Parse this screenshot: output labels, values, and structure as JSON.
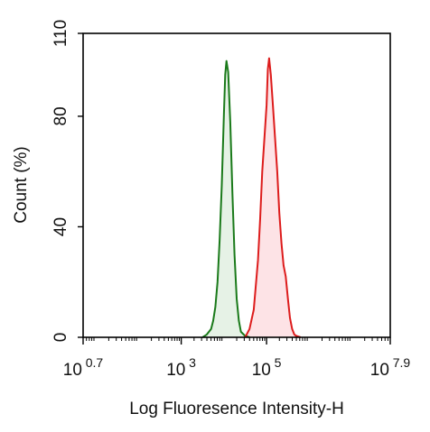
{
  "chart_data": {
    "type": "area",
    "title": "",
    "xlabel": "Log Fluoresence Intensity-H",
    "ylabel": "Count  (%)",
    "x_scale": "log",
    "xlim": [
      0.7,
      7.9
    ],
    "ylim": [
      0,
      110
    ],
    "grid": false,
    "legend": "none",
    "x_ticks": [
      {
        "base": "10",
        "exp": "0.7"
      },
      {
        "base": "10",
        "exp": "3"
      },
      {
        "base": "10",
        "exp": "5"
      },
      {
        "base": "10",
        "exp": "7.9"
      }
    ],
    "y_ticks": [
      "0",
      "40",
      "80",
      "110"
    ],
    "series": [
      {
        "color": "#1a7a1a",
        "fill": "#e6f2e6",
        "x": [
          3.5,
          3.6,
          3.7,
          3.75,
          3.8,
          3.85,
          3.9,
          3.95,
          4.0,
          4.03,
          4.06,
          4.1,
          4.15,
          4.2,
          4.25,
          4.3,
          4.35,
          4.4,
          4.5,
          4.6
        ],
        "values": [
          0,
          1,
          3,
          6,
          11,
          20,
          35,
          55,
          80,
          95,
          100,
          96,
          78,
          52,
          30,
          14,
          6,
          2,
          0.5,
          0
        ]
      },
      {
        "color": "#dd1c1c",
        "fill": "#fde3e6",
        "x": [
          4.5,
          4.6,
          4.7,
          4.8,
          4.85,
          4.9,
          4.95,
          5.0,
          5.03,
          5.06,
          5.1,
          5.15,
          5.2,
          5.25,
          5.3,
          5.35,
          5.4,
          5.45,
          5.5,
          5.55,
          5.6,
          5.65,
          5.7,
          5.8
        ],
        "values": [
          0,
          3,
          10,
          28,
          43,
          60,
          72,
          84,
          97,
          101,
          95,
          84,
          72,
          60,
          45,
          34,
          26,
          22,
          14,
          7,
          3,
          1,
          0.5,
          0
        ]
      }
    ]
  }
}
